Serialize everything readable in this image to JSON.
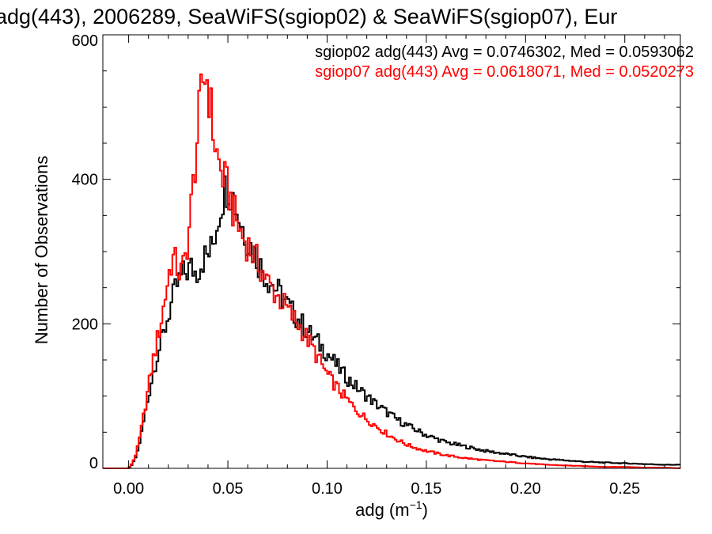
{
  "chart_data": {
    "type": "line",
    "title": "adg(443), 2006289, SeaWiFS(sgiop02) & SeaWiFS(sgiop07), Eur",
    "xlabel_main": "adg (m",
    "xlabel_sup": "−1",
    "xlabel_close": ")",
    "ylabel": "Number of Observations",
    "xlim": [
      -0.013,
      0.278
    ],
    "ylim": [
      0,
      600
    ],
    "xticks": [
      0.0,
      0.05,
      0.1,
      0.15,
      0.2,
      0.25
    ],
    "xtick_labels": [
      "0.00",
      "0.05",
      "0.10",
      "0.15",
      "0.20",
      "0.25"
    ],
    "yticks": [
      0,
      200,
      400,
      600
    ],
    "ytick_labels": [
      "0",
      "200",
      "400",
      "600"
    ],
    "grid": false,
    "legend_placement": "top-right",
    "series": [
      {
        "name": "sgiop02 adg(443) Avg = 0.0746302, Med = 0.0593062",
        "color": "#000000",
        "points": [
          [
            -0.01,
            0
          ],
          [
            0.0,
            0
          ],
          [
            0.002,
            6
          ],
          [
            0.004,
            18
          ],
          [
            0.006,
            42
          ],
          [
            0.008,
            72
          ],
          [
            0.01,
            100
          ],
          [
            0.012,
            128
          ],
          [
            0.014,
            152
          ],
          [
            0.016,
            170
          ],
          [
            0.018,
            190
          ],
          [
            0.02,
            212
          ],
          [
            0.022,
            232
          ],
          [
            0.024,
            250
          ],
          [
            0.026,
            262
          ],
          [
            0.028,
            270
          ],
          [
            0.03,
            275
          ],
          [
            0.032,
            278
          ],
          [
            0.034,
            270
          ],
          [
            0.036,
            282
          ],
          [
            0.038,
            292
          ],
          [
            0.04,
            295
          ],
          [
            0.042,
            305
          ],
          [
            0.044,
            332
          ],
          [
            0.046,
            360
          ],
          [
            0.048,
            382
          ],
          [
            0.05,
            395
          ],
          [
            0.052,
            380
          ],
          [
            0.054,
            362
          ],
          [
            0.056,
            345
          ],
          [
            0.058,
            330
          ],
          [
            0.06,
            315
          ],
          [
            0.062,
            305
          ],
          [
            0.064,
            295
          ],
          [
            0.066,
            282
          ],
          [
            0.068,
            272
          ],
          [
            0.07,
            262
          ],
          [
            0.074,
            250
          ],
          [
            0.078,
            235
          ],
          [
            0.082,
            218
          ],
          [
            0.086,
            205
          ],
          [
            0.09,
            190
          ],
          [
            0.095,
            175
          ],
          [
            0.1,
            160
          ],
          [
            0.105,
            142
          ],
          [
            0.11,
            125
          ],
          [
            0.115,
            112
          ],
          [
            0.12,
            100
          ],
          [
            0.125,
            88
          ],
          [
            0.13,
            78
          ],
          [
            0.135,
            68
          ],
          [
            0.14,
            60
          ],
          [
            0.145,
            53
          ],
          [
            0.15,
            46
          ],
          [
            0.16,
            36
          ],
          [
            0.17,
            30
          ],
          [
            0.18,
            24
          ],
          [
            0.19,
            20
          ],
          [
            0.2,
            16
          ],
          [
            0.21,
            13
          ],
          [
            0.22,
            11
          ],
          [
            0.23,
            9
          ],
          [
            0.24,
            8
          ],
          [
            0.25,
            7
          ],
          [
            0.26,
            6
          ],
          [
            0.27,
            5
          ],
          [
            0.278,
            5
          ]
        ]
      },
      {
        "name": "sgiop07 adg(443) Avg = 0.0618071, Med = 0.0520273",
        "color": "#ff0000",
        "points": [
          [
            -0.01,
            0
          ],
          [
            0.0,
            0
          ],
          [
            0.002,
            8
          ],
          [
            0.004,
            22
          ],
          [
            0.006,
            48
          ],
          [
            0.008,
            80
          ],
          [
            0.01,
            112
          ],
          [
            0.012,
            145
          ],
          [
            0.014,
            172
          ],
          [
            0.016,
            198
          ],
          [
            0.018,
            230
          ],
          [
            0.02,
            265
          ],
          [
            0.022,
            292
          ],
          [
            0.024,
            282
          ],
          [
            0.026,
            268
          ],
          [
            0.028,
            282
          ],
          [
            0.03,
            320
          ],
          [
            0.032,
            375
          ],
          [
            0.034,
            440
          ],
          [
            0.036,
            500
          ],
          [
            0.038,
            548
          ],
          [
            0.04,
            535
          ],
          [
            0.042,
            480
          ],
          [
            0.044,
            440
          ],
          [
            0.046,
            415
          ],
          [
            0.048,
            400
          ],
          [
            0.05,
            385
          ],
          [
            0.052,
            365
          ],
          [
            0.054,
            345
          ],
          [
            0.056,
            330
          ],
          [
            0.058,
            318
          ],
          [
            0.06,
            310
          ],
          [
            0.062,
            300
          ],
          [
            0.064,
            290
          ],
          [
            0.066,
            280
          ],
          [
            0.068,
            270
          ],
          [
            0.07,
            258
          ],
          [
            0.074,
            242
          ],
          [
            0.078,
            228
          ],
          [
            0.082,
            212
          ],
          [
            0.086,
            198
          ],
          [
            0.09,
            180
          ],
          [
            0.095,
            155
          ],
          [
            0.1,
            130
          ],
          [
            0.105,
            112
          ],
          [
            0.11,
            95
          ],
          [
            0.115,
            80
          ],
          [
            0.12,
            68
          ],
          [
            0.125,
            58
          ],
          [
            0.13,
            48
          ],
          [
            0.135,
            40
          ],
          [
            0.14,
            33
          ],
          [
            0.145,
            28
          ],
          [
            0.15,
            24
          ],
          [
            0.16,
            18
          ],
          [
            0.17,
            14
          ],
          [
            0.18,
            11
          ],
          [
            0.19,
            9
          ],
          [
            0.2,
            7
          ],
          [
            0.21,
            5
          ],
          [
            0.22,
            4
          ],
          [
            0.23,
            3
          ],
          [
            0.24,
            2
          ],
          [
            0.25,
            2
          ],
          [
            0.26,
            1
          ],
          [
            0.27,
            1
          ],
          [
            0.278,
            0
          ]
        ]
      }
    ]
  }
}
